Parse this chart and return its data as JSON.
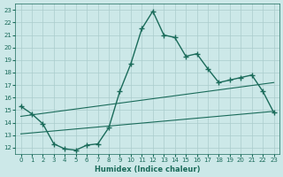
{
  "xlabel": "Humidex (Indice chaleur)",
  "x_values": [
    0,
    1,
    2,
    3,
    4,
    5,
    6,
    7,
    8,
    9,
    10,
    11,
    12,
    13,
    14,
    15,
    16,
    17,
    18,
    19,
    20,
    21,
    22,
    23
  ],
  "main_line": [
    15.3,
    14.7,
    13.9,
    12.3,
    11.9,
    11.8,
    12.2,
    12.3,
    13.6,
    16.5,
    18.7,
    21.5,
    22.9,
    21.0,
    20.8,
    19.3,
    19.5,
    18.3,
    17.2,
    17.4,
    17.6,
    17.8,
    16.5,
    14.8
  ],
  "upper_line_x": [
    0,
    23
  ],
  "upper_line_y": [
    14.5,
    17.2
  ],
  "lower_line_x": [
    0,
    23
  ],
  "lower_line_y": [
    13.1,
    14.9
  ],
  "line_color": "#1a6b5a",
  "bg_color": "#cce8e8",
  "grid_color": "#aacccc",
  "xlim": [
    -0.5,
    23.5
  ],
  "ylim": [
    11.5,
    23.5
  ],
  "yticks": [
    12,
    13,
    14,
    15,
    16,
    17,
    18,
    19,
    20,
    21,
    22,
    23
  ],
  "xticks": [
    0,
    1,
    2,
    3,
    4,
    5,
    6,
    7,
    8,
    9,
    10,
    11,
    12,
    13,
    14,
    15,
    16,
    17,
    18,
    19,
    20,
    21,
    22,
    23
  ],
  "xlabel_fontsize": 6,
  "tick_fontsize": 5
}
